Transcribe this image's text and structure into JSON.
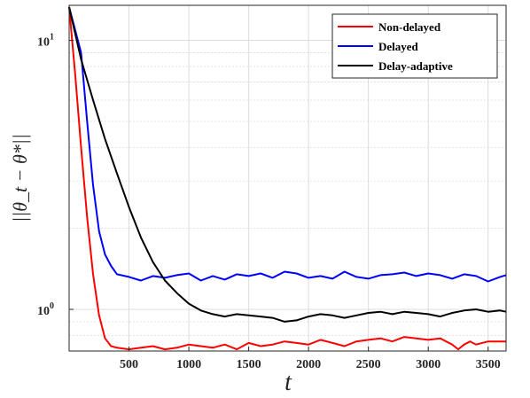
{
  "chart_data": {
    "type": "line",
    "title": "",
    "xlabel": "t",
    "ylabel": "||θ_t − θ*||",
    "xscale": "linear",
    "yscale": "log",
    "xlim": [
      0,
      3650
    ],
    "ylim": [
      0.7,
      13.5
    ],
    "xticks": [
      500,
      1000,
      1500,
      2000,
      2500,
      3000,
      3500
    ],
    "yticks": [
      {
        "value": 1,
        "label": "10",
        "exp": "0"
      },
      {
        "value": 10,
        "label": "10",
        "exp": "1"
      }
    ],
    "grid": true,
    "legend_position": "top-right",
    "series": [
      {
        "name": "Non-delayed",
        "color": "#ff0000",
        "x": [
          0,
          50,
          100,
          150,
          200,
          250,
          300,
          350,
          400,
          500,
          600,
          700,
          800,
          900,
          1000,
          1100,
          1200,
          1300,
          1400,
          1500,
          1600,
          1700,
          1800,
          1900,
          2000,
          2100,
          2200,
          2300,
          2400,
          2500,
          2600,
          2700,
          2800,
          2900,
          3000,
          3100,
          3200,
          3250,
          3300,
          3350,
          3400,
          3500,
          3650
        ],
        "y": [
          13.3,
          7.5,
          4.0,
          2.2,
          1.35,
          0.95,
          0.78,
          0.73,
          0.72,
          0.71,
          0.72,
          0.73,
          0.71,
          0.72,
          0.74,
          0.73,
          0.72,
          0.74,
          0.71,
          0.75,
          0.73,
          0.74,
          0.76,
          0.75,
          0.74,
          0.77,
          0.75,
          0.73,
          0.76,
          0.77,
          0.78,
          0.76,
          0.79,
          0.78,
          0.77,
          0.78,
          0.74,
          0.71,
          0.74,
          0.76,
          0.74,
          0.76,
          0.76
        ]
      },
      {
        "name": "Delayed",
        "color": "#0000ff",
        "x": [
          0,
          100,
          150,
          200,
          250,
          300,
          350,
          400,
          500,
          600,
          700,
          800,
          900,
          1000,
          1100,
          1200,
          1300,
          1400,
          1500,
          1600,
          1700,
          1800,
          1900,
          2000,
          2100,
          2200,
          2300,
          2400,
          2500,
          2600,
          2700,
          2800,
          2900,
          3000,
          3100,
          3200,
          3300,
          3400,
          3500,
          3600,
          3650
        ],
        "y": [
          13.3,
          9.0,
          5.0,
          2.9,
          1.95,
          1.6,
          1.45,
          1.35,
          1.32,
          1.28,
          1.33,
          1.31,
          1.34,
          1.36,
          1.28,
          1.33,
          1.29,
          1.35,
          1.33,
          1.36,
          1.31,
          1.38,
          1.36,
          1.31,
          1.33,
          1.3,
          1.38,
          1.32,
          1.3,
          1.34,
          1.35,
          1.37,
          1.33,
          1.36,
          1.34,
          1.3,
          1.35,
          1.33,
          1.27,
          1.32,
          1.34
        ]
      },
      {
        "name": "Delay-adaptive",
        "color": "#000000",
        "x": [
          0,
          100,
          200,
          300,
          400,
          500,
          600,
          700,
          800,
          900,
          1000,
          1100,
          1200,
          1300,
          1400,
          1500,
          1600,
          1700,
          1800,
          1900,
          2000,
          2100,
          2200,
          2300,
          2400,
          2500,
          2600,
          2700,
          2800,
          2900,
          3000,
          3100,
          3200,
          3300,
          3400,
          3500,
          3600,
          3650
        ],
        "y": [
          13.3,
          8.5,
          6.0,
          4.3,
          3.2,
          2.4,
          1.85,
          1.5,
          1.28,
          1.15,
          1.05,
          0.99,
          0.96,
          0.94,
          0.96,
          0.95,
          0.94,
          0.93,
          0.9,
          0.91,
          0.94,
          0.96,
          0.95,
          0.93,
          0.95,
          0.97,
          0.98,
          0.96,
          0.98,
          0.97,
          0.96,
          0.94,
          0.97,
          0.99,
          1.0,
          0.98,
          0.99,
          0.98
        ]
      }
    ]
  }
}
